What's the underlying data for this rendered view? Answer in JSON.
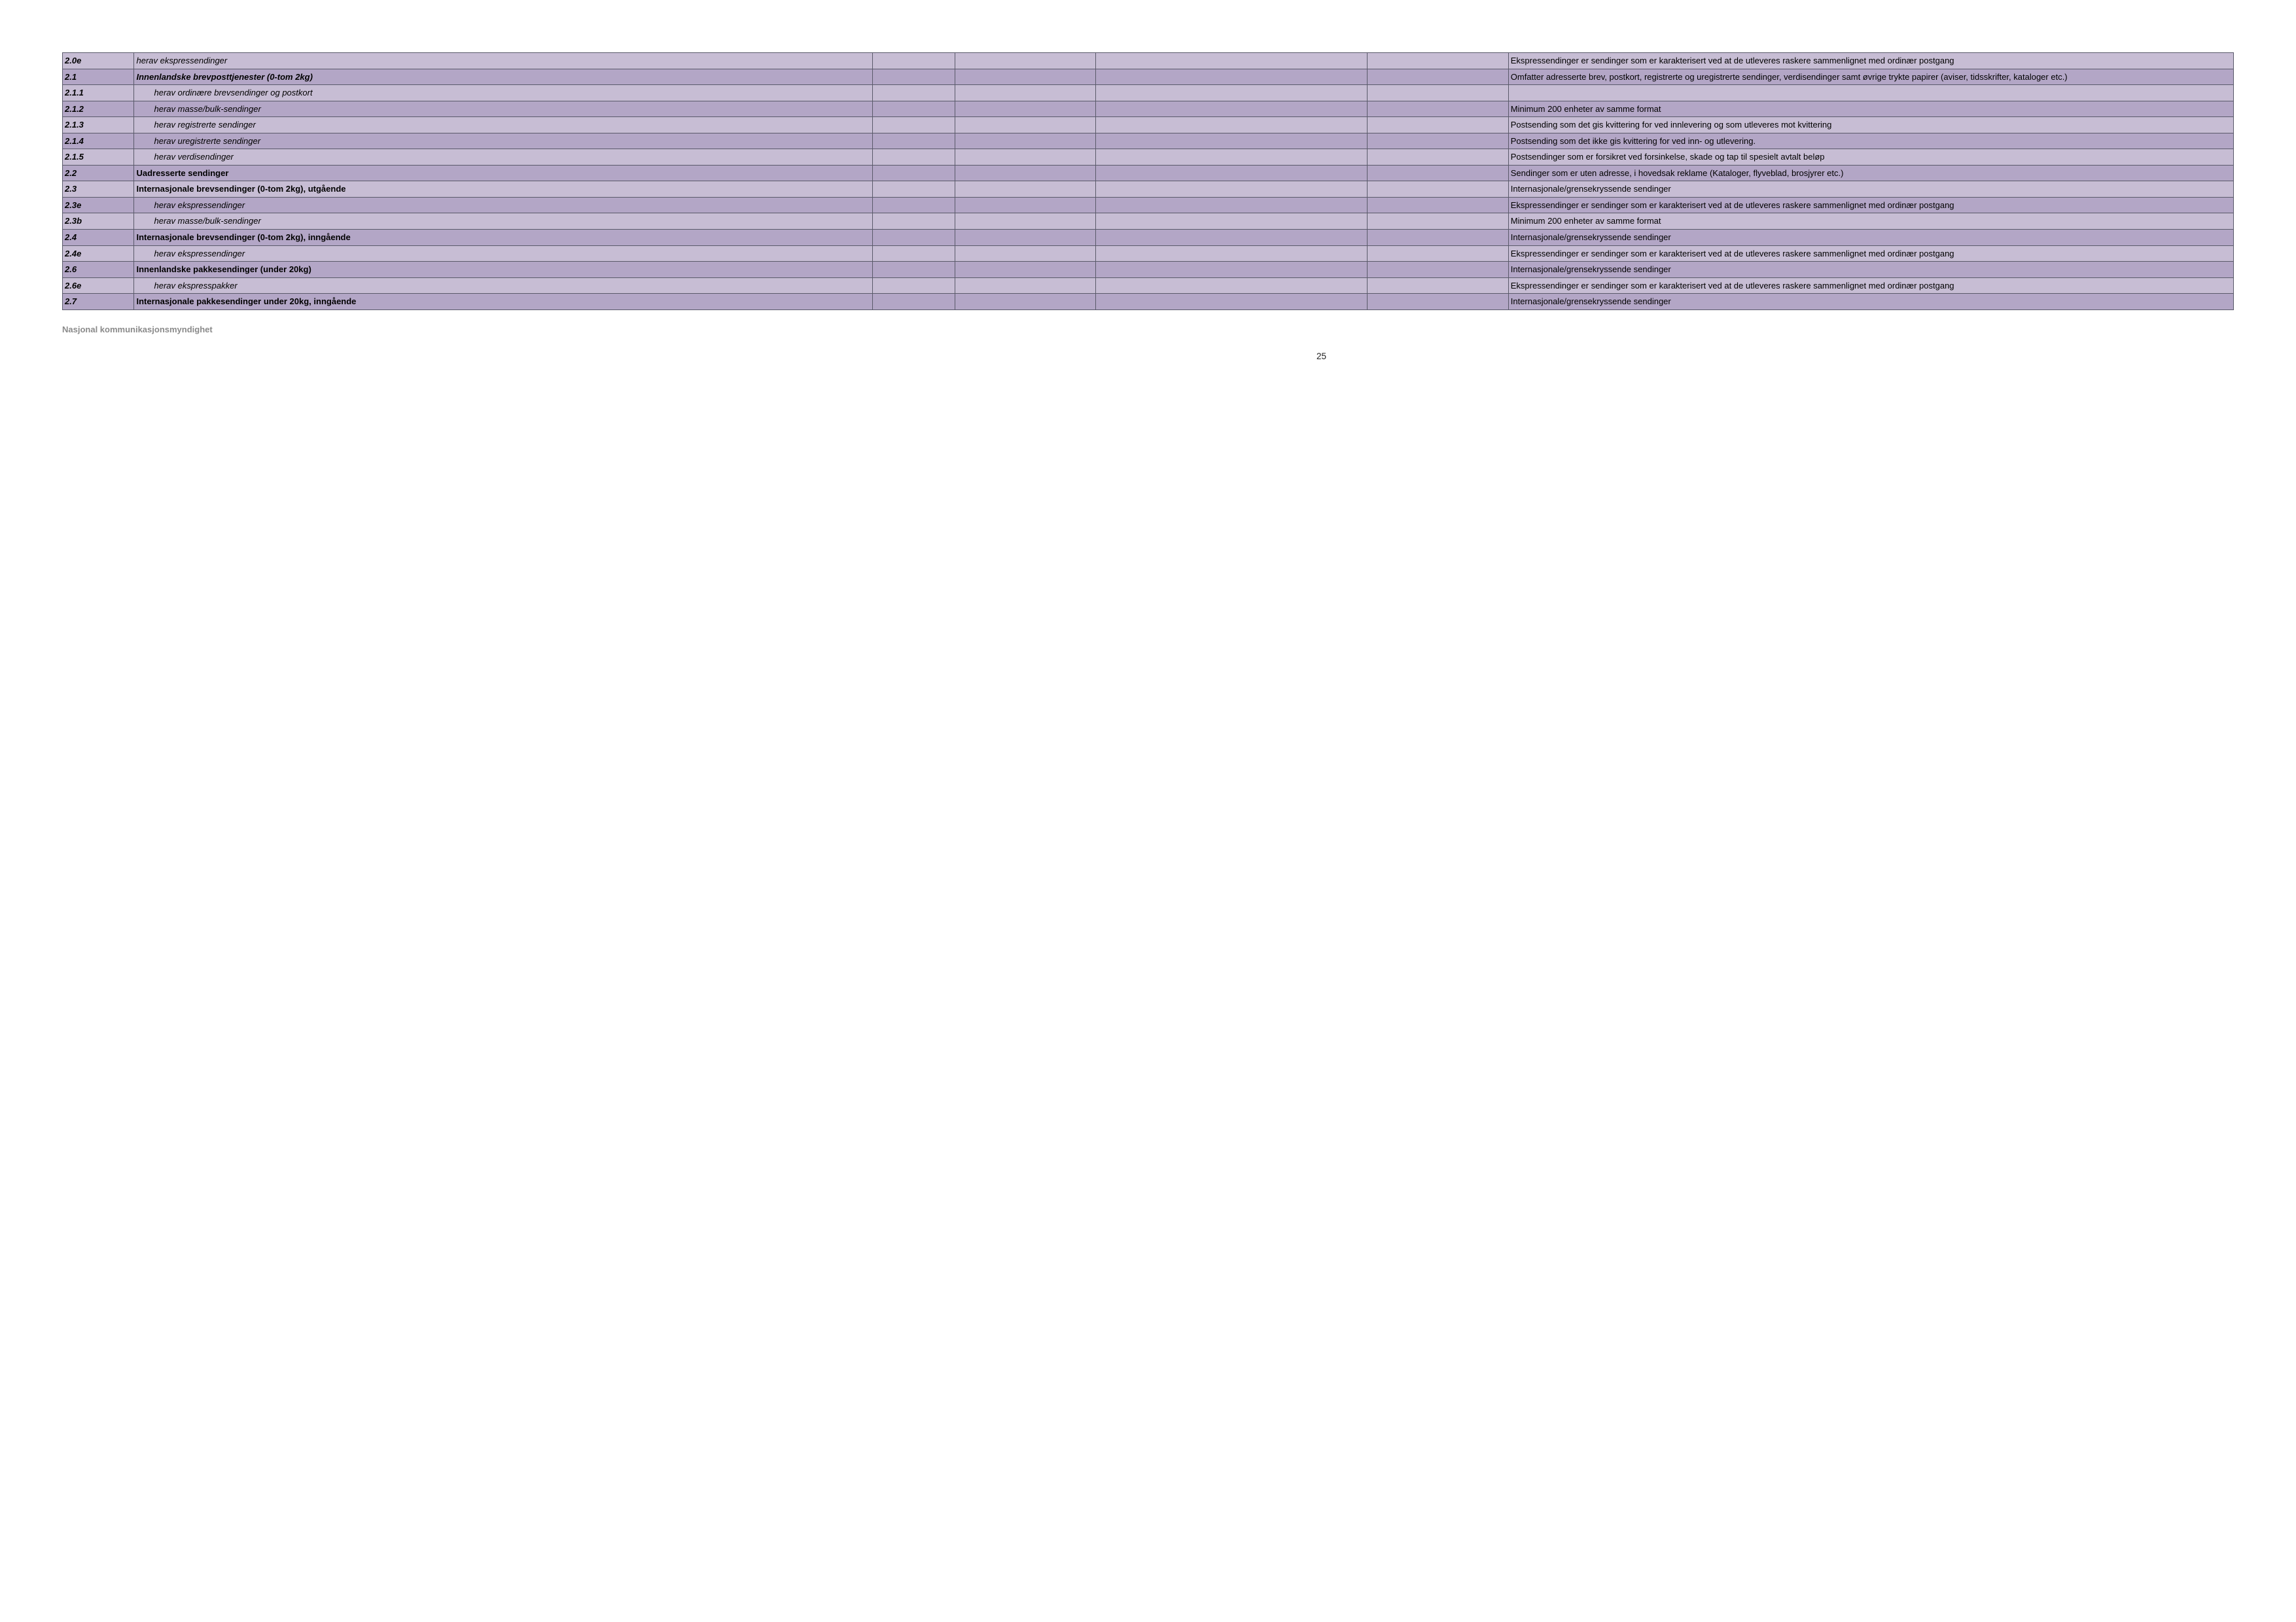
{
  "colors": {
    "background": "#ffffff",
    "row_light": "#c7bdd4",
    "row_dark": "#b3a6c6",
    "border": "#5a5a6a",
    "footer_text": "#8a8a8a"
  },
  "table": [
    {
      "code": "2.0e",
      "label": "herav ekspressendinger",
      "indent": 0,
      "style": "italic",
      "rowstyle": "light three",
      "desc": "Ekspressendinger er sendinger som er karakterisert ved at de utleveres raskere sammenlignet med ordinær postgang"
    },
    {
      "code": "2.1",
      "label": "Innenlandske  brevposttjenester (0-tom 2kg)",
      "indent": 0,
      "style": "bold-italic",
      "rowstyle": "dark four",
      "desc": "Omfatter adresserte brev, postkort, registrerte og uregistrerte sendinger, verdisendinger samt øvrige trykte papirer (aviser, tidsskrifter, kataloger etc.)"
    },
    {
      "code": "2.1.1",
      "label": "herav ordinære brevsendinger og postkort",
      "indent": 1,
      "style": "italic",
      "rowstyle": "light two",
      "desc": ""
    },
    {
      "code": "2.1.2",
      "label": "herav masse/bulk-sendinger",
      "indent": 1,
      "style": "italic",
      "rowstyle": "dark two",
      "desc": "Minimum 200 enheter av samme format"
    },
    {
      "code": "2.1.3",
      "label": "herav registrerte sendinger",
      "indent": 1,
      "style": "italic",
      "rowstyle": "light two",
      "desc": "Postsending som det gis kvittering for ved innlevering og som utleveres mot kvittering"
    },
    {
      "code": "2.1.4",
      "label": "herav uregistrerte sendinger",
      "indent": 1,
      "style": "italic",
      "rowstyle": "dark two",
      "desc": "Postsending som det ikke gis kvittering for ved inn- og utlevering."
    },
    {
      "code": "2.1.5",
      "label": "herav verdisendinger",
      "indent": 1,
      "style": "italic",
      "rowstyle": "light three",
      "desc": "Postsendinger som er forsikret ved forsinkelse, skade og tap  til spesielt avtalt beløp"
    },
    {
      "code": "2.2",
      "label": "Uadresserte sendinger",
      "indent": 0,
      "style": "bold",
      "rowstyle": "dark two",
      "desc": "Sendinger som er uten adresse, i hovedsak reklame (Kataloger, flyveblad, brosjyrer etc.)"
    },
    {
      "code": "2.3",
      "label": "Internasjonale  brevsendinger  (0-tom 2kg), utgående",
      "indent": 0,
      "style": "bold",
      "rowstyle": "light two",
      "desc": "Internasjonale/grensekryssende sendinger"
    },
    {
      "code": "2.3e",
      "label": "herav ekspressendinger",
      "indent": 1,
      "style": "italic",
      "rowstyle": "dark three",
      "desc": "Ekspressendinger er sendinger som er karakterisert ved at de utleveres raskere sammenlignet med ordinær postgang"
    },
    {
      "code": "2.3b",
      "label": "herav masse/bulk-sendinger",
      "indent": 1,
      "style": "italic",
      "rowstyle": "light two",
      "desc": "Minimum 200 enheter av samme format"
    },
    {
      "code": "2.4",
      "label": "Internasjonale  brevsendinger  (0-tom 2kg), inngående",
      "indent": 0,
      "style": "bold",
      "rowstyle": "dark two",
      "desc": "Internasjonale/grensekryssende sendinger"
    },
    {
      "code": "2.4e",
      "label": "herav ekspressendinger",
      "indent": 1,
      "style": "italic",
      "rowstyle": "light three",
      "desc": "Ekspressendinger er sendinger som er karakterisert ved at de utleveres raskere sammenlignet med ordinær postgang"
    },
    {
      "code": "2.6",
      "label": "Innenlandske  pakkesendinger (under 20kg)",
      "indent": 0,
      "style": "bold",
      "rowstyle": "dark two",
      "desc": "Internasjonale/grensekryssende sendinger"
    },
    {
      "code": "2.6e",
      "label": "herav ekspresspakker",
      "indent": 1,
      "style": "italic",
      "rowstyle": "light three",
      "desc": "Ekspressendinger er sendinger som er karakterisert ved at de utleveres raskere sammenlignet med ordinær postgang"
    },
    {
      "code": "2.7",
      "label": "Internasjonale  pakkesendinger under 20kg, inngående",
      "indent": 0,
      "style": "bold",
      "rowstyle": "dark two",
      "desc": "Internasjonale/grensekryssende sendinger"
    }
  ],
  "footer_text": "Nasjonal kommunikasjonsmyndighet",
  "page_number": "25"
}
